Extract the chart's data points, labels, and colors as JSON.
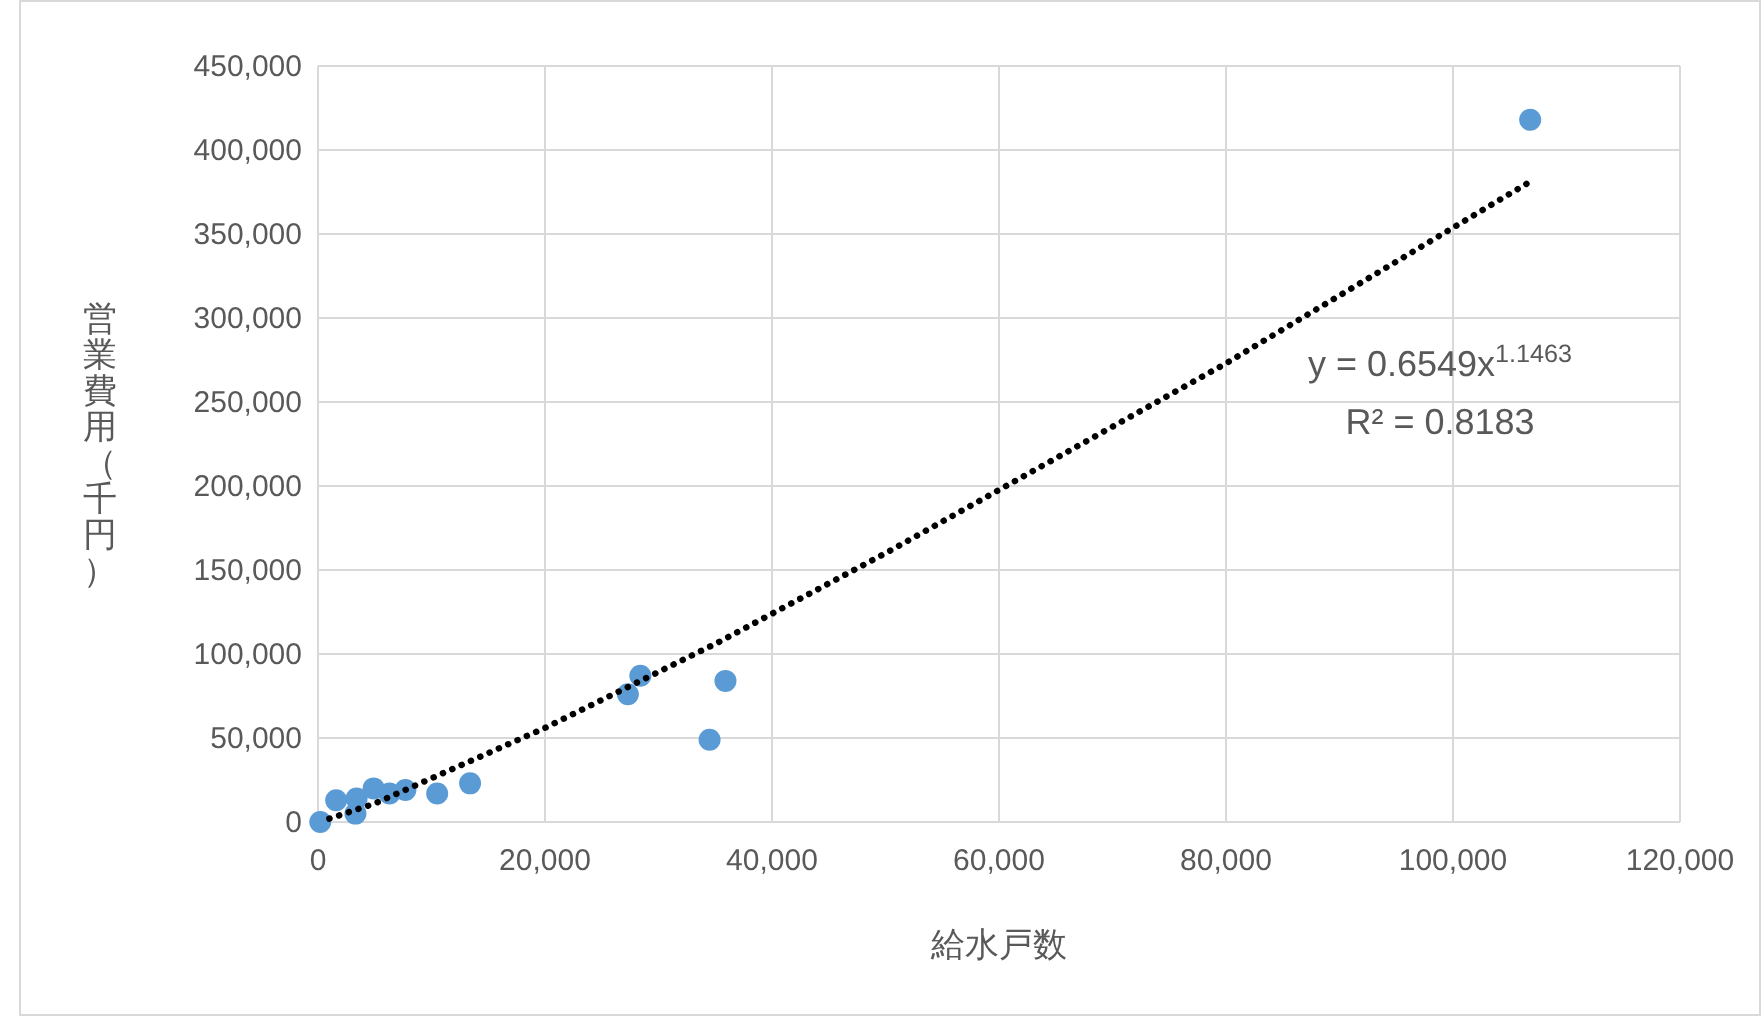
{
  "chart_data": {
    "type": "scatter",
    "xlabel": "給水戸数",
    "ylabel": "営業費用（千円）",
    "xlim": [
      0,
      120000
    ],
    "xticks": [
      {
        "value": 0,
        "label": "0"
      },
      {
        "value": 20000,
        "label": "20,000"
      },
      {
        "value": 40000,
        "label": "40,000"
      },
      {
        "value": 60000,
        "label": "60,000"
      },
      {
        "value": 80000,
        "label": "80,000"
      },
      {
        "value": 100000,
        "label": "100,000"
      },
      {
        "value": 120000,
        "label": "120,000"
      }
    ],
    "ylim": [
      0,
      450000
    ],
    "yticks": [
      {
        "value": 0,
        "label": "0"
      },
      {
        "value": 50000,
        "label": "50,000"
      },
      {
        "value": 100000,
        "label": "100,000"
      },
      {
        "value": 150000,
        "label": "150,000"
      },
      {
        "value": 200000,
        "label": "200,000"
      },
      {
        "value": 250000,
        "label": "250,000"
      },
      {
        "value": 300000,
        "label": "300,000"
      },
      {
        "value": 350000,
        "label": "350,000"
      },
      {
        "value": 400000,
        "label": "400,000"
      },
      {
        "value": 450000,
        "label": "450,000"
      }
    ],
    "grid": true,
    "marker": "circle",
    "series": [
      {
        "color": "#5b9bd5",
        "x": [
          200,
          1600,
          3300,
          3400,
          4900,
          6300,
          7700,
          10500,
          13400,
          27300,
          28400,
          34500,
          35900,
          106800
        ],
        "values": [
          0,
          13000,
          5000,
          14000,
          20000,
          17000,
          19000,
          17000,
          23000,
          76000,
          87000,
          49000,
          84000,
          418000
        ]
      },
      {
        "type": "line",
        "color": "#000000",
        "line_style": "dotted",
        "marker": "none",
        "x": [
          1000,
          5000,
          20000,
          35000,
          50000,
          80000,
          107000
        ],
        "values": [
          2000,
          11000,
          56000,
          106000,
          160000,
          273000,
          382000
        ]
      }
    ],
    "annotations": [
      "y = 0.6549x$^{1.1463}$",
      "R² = 0.8183"
    ]
  }
}
